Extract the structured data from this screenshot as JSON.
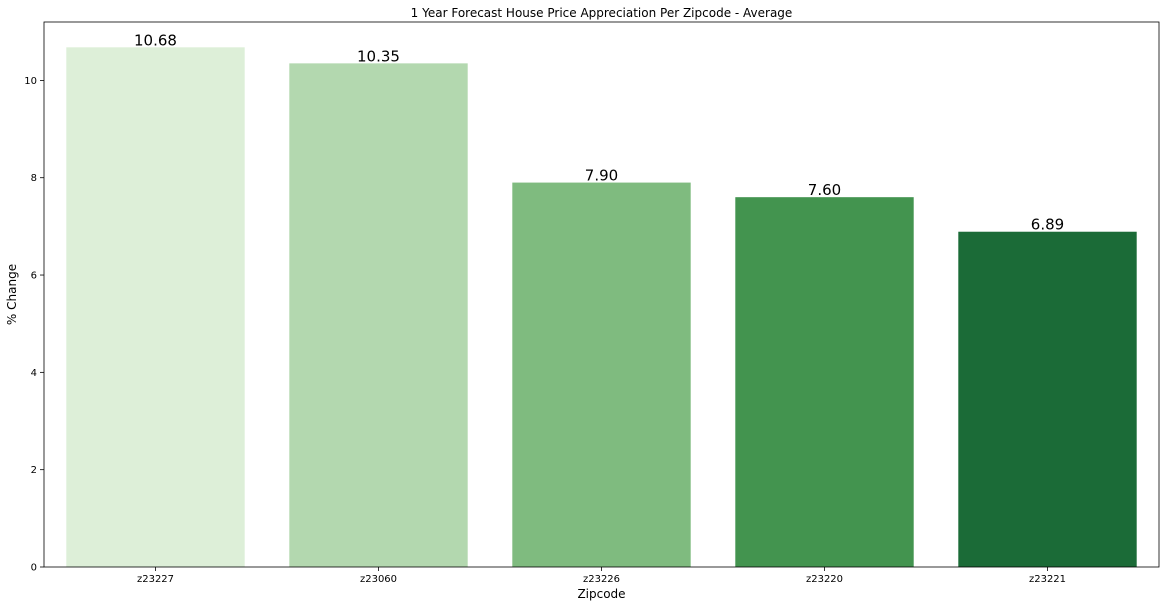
{
  "chart_data": {
    "type": "bar",
    "title": "1 Year Forecast House Price Appreciation Per Zipcode -  Average",
    "xlabel": "Zipcode",
    "ylabel": "% Change",
    "categories": [
      "z23227",
      "z23060",
      "z23226",
      "z23220",
      "z23221"
    ],
    "values": [
      10.68,
      10.35,
      7.9,
      7.6,
      6.89
    ],
    "data_labels": [
      "10.68",
      "10.35",
      "7.90",
      "7.60",
      "6.89"
    ],
    "colors": [
      "#ddefd8",
      "#b3d8af",
      "#7fbb7f",
      "#43944f",
      "#1b6b37"
    ],
    "ylim": [
      0,
      11.2
    ],
    "yticks": [
      0,
      2,
      4,
      6,
      8,
      10
    ],
    "grid": false,
    "legend": "none"
  }
}
